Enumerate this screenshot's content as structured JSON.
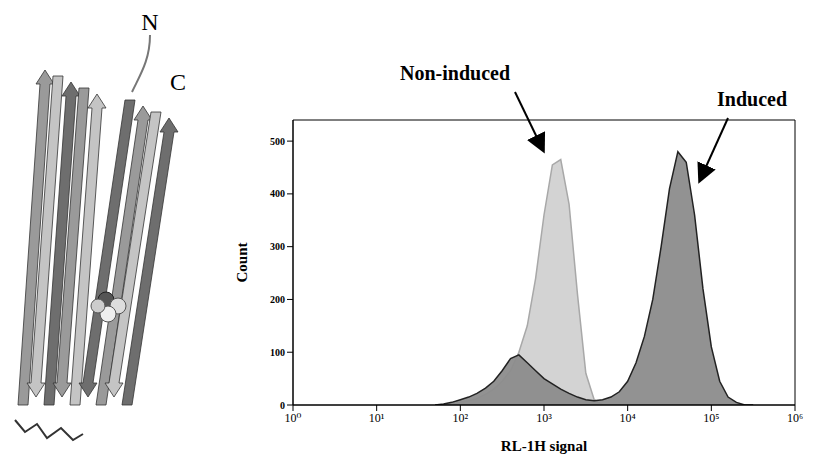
{
  "structure_labels": [
    "N",
    "C"
  ],
  "chart_data": {
    "type": "area",
    "x_label": "RL-1H signal",
    "y_label": "Count",
    "log": "x",
    "grid": false,
    "xlim": [
      1,
      1000000
    ],
    "xticks": [
      {
        "value": 1,
        "label": "10⁰"
      },
      {
        "value": 10,
        "label": "10¹"
      },
      {
        "value": 100,
        "label": "10²"
      },
      {
        "value": 1000,
        "label": "10³"
      },
      {
        "value": 10000,
        "label": "10⁴"
      },
      {
        "value": 100000,
        "label": "10⁵"
      },
      {
        "value": 1000000,
        "label": "10⁶"
      }
    ],
    "ylim": [
      0,
      540
    ],
    "yticks": [
      0,
      100,
      200,
      300,
      400,
      500
    ],
    "x": [
      50,
      63,
      79,
      100,
      126,
      158,
      200,
      251,
      316,
      398,
      501,
      631,
      794,
      1000,
      1259,
      1585,
      1995,
      2512,
      3162,
      3981,
      5012,
      6310,
      7943,
      10000,
      12589,
      15849,
      19953,
      25119,
      31623,
      39811,
      50119,
      63096,
      79433,
      100000,
      125893,
      158489,
      199526,
      251189,
      316228
    ],
    "series": [
      {
        "name": "Non-induced",
        "color": "#d3d3d3",
        "values": [
          0,
          0,
          2,
          5,
          8,
          12,
          20,
          30,
          45,
          65,
          100,
          150,
          240,
          360,
          455,
          465,
          380,
          210,
          60,
          10,
          0,
          0,
          0,
          0,
          0,
          0,
          0,
          0,
          0,
          0,
          0,
          0,
          0,
          0,
          0,
          0,
          0,
          0,
          0
        ]
      },
      {
        "name": "Induced",
        "color": "#8c8c8c",
        "values": [
          0,
          2,
          5,
          10,
          15,
          22,
          32,
          45,
          65,
          88,
          95,
          80,
          65,
          50,
          40,
          30,
          22,
          15,
          10,
          8,
          10,
          15,
          25,
          45,
          80,
          130,
          200,
          300,
          410,
          480,
          460,
          360,
          220,
          110,
          45,
          15,
          5,
          0,
          0
        ]
      }
    ]
  }
}
